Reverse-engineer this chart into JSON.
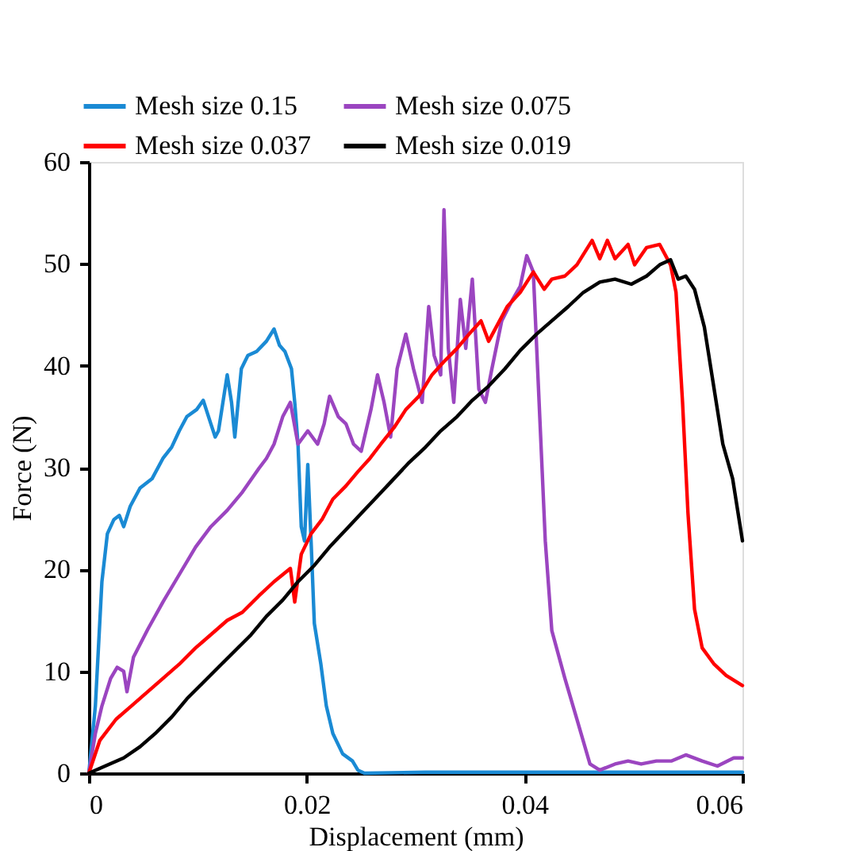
{
  "chart_data": {
    "type": "line",
    "xlabel": "Displacement (mm)",
    "ylabel": "Force (N)",
    "xlim": [
      0,
      0.06
    ],
    "ylim": [
      0,
      60
    ],
    "xticks": [
      0,
      {
        "value": 0.02,
        "label": "0.02"
      },
      {
        "value": 0.04,
        "label": "0.04"
      },
      {
        "value": 0.06,
        "label": "0.06"
      }
    ],
    "yticks": [
      0,
      10,
      20,
      30,
      40,
      50,
      60
    ],
    "grid": false,
    "legend": "top",
    "marker": "none",
    "line_style": "solid",
    "series": [
      {
        "name": "Mesh size 0.15",
        "color": "#1a8ad4",
        "x": [
          0,
          0.0006,
          0.0012,
          0.0017,
          0.0023,
          0.0028,
          0.0032,
          0.0038,
          0.0047,
          0.0058,
          0.0068,
          0.0076,
          0.0083,
          0.009,
          0.0099,
          0.0105,
          0.0112,
          0.0116,
          0.0119,
          0.0127,
          0.0131,
          0.0134,
          0.014,
          0.0146,
          0.0154,
          0.0163,
          0.017,
          0.0175,
          0.018,
          0.0186,
          0.0189,
          0.0192,
          0.0195,
          0.0198,
          0.0201,
          0.0204,
          0.0207,
          0.0213,
          0.0218,
          0.0224,
          0.0233,
          0.0242,
          0.0247,
          0.0253,
          0.0309,
          0.0454,
          0.06
        ],
        "values": [
          0,
          6.6,
          18.8,
          23.5,
          24.9,
          25.3,
          24.2,
          26.2,
          28,
          28.9,
          30.9,
          32,
          33.6,
          35,
          35.7,
          36.6,
          34.3,
          33,
          33.6,
          39.1,
          36.4,
          33,
          39.7,
          41,
          41.4,
          42.4,
          43.6,
          42,
          41.4,
          39.7,
          36.4,
          32.3,
          24.2,
          22.8,
          30.3,
          22.8,
          14.7,
          10.7,
          6.6,
          3.9,
          1.9,
          1.2,
          0.3,
          0,
          0.1,
          0.1,
          0.1
        ]
      },
      {
        "name": "Mesh size 0.075",
        "color": "#9b45c0",
        "x": [
          0,
          0.0006,
          0.0012,
          0.002,
          0.0026,
          0.0032,
          0.0035,
          0.0041,
          0.0054,
          0.0068,
          0.0083,
          0.0098,
          0.0112,
          0.0127,
          0.0141,
          0.0156,
          0.0163,
          0.017,
          0.0178,
          0.0185,
          0.0192,
          0.0201,
          0.021,
          0.0216,
          0.0221,
          0.0229,
          0.0236,
          0.0243,
          0.025,
          0.0259,
          0.0265,
          0.0271,
          0.0277,
          0.0283,
          0.0291,
          0.0298,
          0.0306,
          0.0312,
          0.0317,
          0.0323,
          0.0326,
          0.033,
          0.0335,
          0.0341,
          0.0346,
          0.0352,
          0.0358,
          0.0364,
          0.037,
          0.0379,
          0.0389,
          0.0396,
          0.0402,
          0.0408,
          0.041,
          0.0419,
          0.0425,
          0.0437,
          0.0448,
          0.046,
          0.0469,
          0.0483,
          0.0495,
          0.0507,
          0.0521,
          0.0535,
          0.0548,
          0.0563,
          0.0577,
          0.0592,
          0.06
        ],
        "values": [
          0,
          3.9,
          6.6,
          9.3,
          10.4,
          10,
          8,
          11.4,
          14.1,
          16.8,
          19.5,
          22.2,
          24.2,
          25.8,
          27.6,
          29.9,
          30.9,
          32.3,
          35,
          36.4,
          32.3,
          33.6,
          32.3,
          34.3,
          37,
          35,
          34.3,
          32.3,
          31.6,
          35.7,
          39.1,
          36.4,
          33,
          39.7,
          43.1,
          39.7,
          36.4,
          45.8,
          41,
          39.1,
          55.3,
          41.7,
          36.4,
          46.5,
          41.7,
          48.5,
          37.7,
          36.4,
          39.7,
          44.4,
          46.5,
          47.8,
          50.8,
          49.2,
          44.4,
          22.8,
          14,
          9.3,
          5.3,
          0.9,
          0.3,
          0.9,
          1.2,
          0.9,
          1.2,
          1.2,
          1.8,
          1.2,
          0.7,
          1.5,
          1.5
        ]
      },
      {
        "name": "Mesh size 0.037",
        "color": "#ff0000",
        "x": [
          0,
          0.001,
          0.0025,
          0.0039,
          0.0054,
          0.0068,
          0.0083,
          0.0098,
          0.0112,
          0.0127,
          0.0141,
          0.0156,
          0.017,
          0.0185,
          0.0189,
          0.0195,
          0.0204,
          0.0214,
          0.0224,
          0.0236,
          0.0247,
          0.0258,
          0.0268,
          0.028,
          0.0291,
          0.0303,
          0.0315,
          0.0326,
          0.0338,
          0.0349,
          0.036,
          0.0367,
          0.0374,
          0.0384,
          0.0396,
          0.0408,
          0.0418,
          0.0425,
          0.0437,
          0.0448,
          0.0462,
          0.0469,
          0.0476,
          0.0483,
          0.0495,
          0.0501,
          0.0512,
          0.0524,
          0.0534,
          0.0539,
          0.0545,
          0.055,
          0.0556,
          0.0563,
          0.0574,
          0.0585,
          0.06
        ],
        "values": [
          0,
          3.2,
          5.3,
          6.6,
          8,
          9.3,
          10.7,
          12.3,
          13.6,
          15,
          15.8,
          17.4,
          18.8,
          20.1,
          16.8,
          21.5,
          23.5,
          24.9,
          26.9,
          28.2,
          29.6,
          30.9,
          32.3,
          33.9,
          35.7,
          37,
          39.1,
          40.4,
          41.7,
          43.1,
          44.4,
          42.4,
          43.8,
          45.8,
          47.2,
          49.2,
          47.5,
          48.5,
          48.8,
          49.9,
          52.3,
          50.5,
          52.3,
          50.5,
          51.9,
          49.9,
          51.6,
          51.9,
          49.9,
          47.2,
          36.4,
          25.5,
          16.1,
          12.3,
          10.7,
          9.6,
          8.6
        ]
      },
      {
        "name": "Mesh size 0.019",
        "color": "#000000",
        "x": [
          0,
          0.0017,
          0.0032,
          0.0047,
          0.0061,
          0.0076,
          0.009,
          0.0105,
          0.0119,
          0.0134,
          0.0149,
          0.0163,
          0.0178,
          0.0192,
          0.0207,
          0.0221,
          0.0236,
          0.025,
          0.0265,
          0.028,
          0.0294,
          0.0309,
          0.0323,
          0.0338,
          0.0352,
          0.0367,
          0.0382,
          0.0396,
          0.0411,
          0.0425,
          0.044,
          0.0454,
          0.0469,
          0.0483,
          0.0498,
          0.0512,
          0.0524,
          0.0534,
          0.0541,
          0.0548,
          0.0556,
          0.0565,
          0.0574,
          0.0582,
          0.0591,
          0.06
        ],
        "values": [
          0,
          0.8,
          1.5,
          2.6,
          3.9,
          5.5,
          7.3,
          8.9,
          10.4,
          12,
          13.6,
          15.4,
          17,
          18.8,
          20.4,
          22.2,
          23.9,
          25.5,
          27.2,
          28.9,
          30.5,
          32,
          33.6,
          35,
          36.6,
          38,
          39.7,
          41.5,
          43.1,
          44.4,
          45.8,
          47.2,
          48.2,
          48.5,
          48,
          48.8,
          49.9,
          50.4,
          48.5,
          48.8,
          47.5,
          43.8,
          37.7,
          32.3,
          28.9,
          22.8
        ]
      }
    ]
  }
}
